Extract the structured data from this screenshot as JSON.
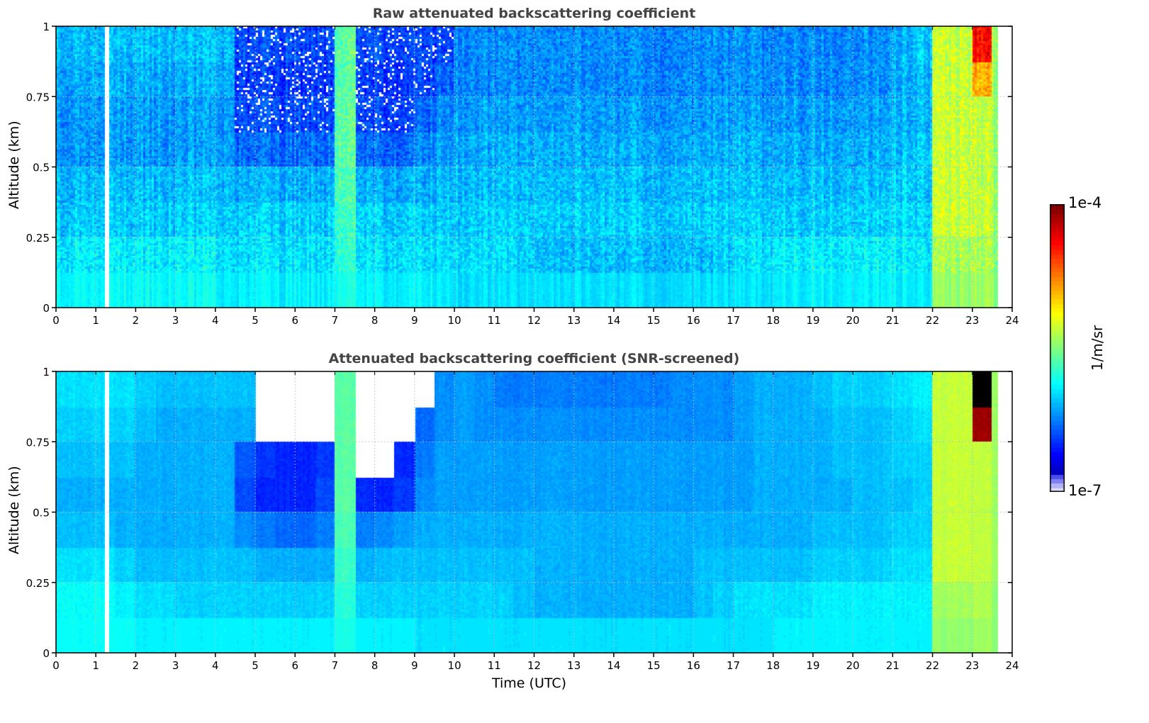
{
  "chart_data": [
    {
      "type": "heatmap",
      "title": "Raw attenuated backscattering coefficient",
      "xlabel": "",
      "ylabel": "Altitude (km)",
      "xlim": [
        0,
        24
      ],
      "ylim": [
        0,
        1
      ],
      "xticks": [
        "0",
        "1",
        "2",
        "3",
        "4",
        "5",
        "6",
        "7",
        "8",
        "9",
        "10",
        "11",
        "12",
        "13",
        "14",
        "15",
        "16",
        "17",
        "18",
        "19",
        "20",
        "21",
        "22",
        "23",
        "24"
      ],
      "yticks": [
        "0",
        "0.25",
        "0.5",
        "0.75",
        "1"
      ],
      "grid": true,
      "time_bin_hours": 0.5,
      "altitude_bins_km_top_to_bottom": [
        [
          0.875,
          1
        ],
        [
          0.75,
          0.875
        ],
        [
          0.625,
          0.75
        ],
        [
          0.5,
          0.625
        ],
        [
          0.375,
          0.5
        ],
        [
          0.25,
          0.375
        ],
        [
          0.125,
          0.25
        ],
        [
          0,
          0.125
        ]
      ],
      "noise_log10": 0.28,
      "missing_profile_times": [
        1.27
      ],
      "no_data_after": 23.65,
      "log10_values": [
        [
          -6.05,
          -6.05,
          -6.05,
          -6.05,
          -6.05,
          -6.05,
          -6.05,
          -6.05,
          -6.05,
          -6.4,
          -6.4,
          -6.4,
          -6.4,
          -6.4,
          -5.6,
          -6.4,
          -6.4,
          -6.4,
          -6.4,
          -6.4,
          -6.2,
          -6.2,
          -6.2,
          -6.2,
          -6.2,
          -6.2,
          -6.2,
          -6.2,
          -6.2,
          -6.2,
          -6.2,
          -6.2,
          -6.2,
          -6.2,
          -6.2,
          -6.2,
          -6.2,
          -6.2,
          -6.2,
          -6.2,
          -6.2,
          -6.2,
          -6.1,
          -6.0,
          -5.3,
          -5.3,
          -4.4,
          -5.4
        ],
        [
          -6.1,
          -6.1,
          -6.1,
          -6.1,
          -6.1,
          -6.1,
          -6.1,
          -6.1,
          -6.1,
          -6.45,
          -6.45,
          -6.45,
          -6.45,
          -6.45,
          -5.6,
          -6.45,
          -6.45,
          -6.45,
          -6.4,
          -6.3,
          -6.2,
          -6.2,
          -6.2,
          -6.2,
          -6.2,
          -6.2,
          -6.2,
          -6.2,
          -6.2,
          -6.2,
          -6.2,
          -6.2,
          -6.2,
          -6.2,
          -6.2,
          -6.2,
          -6.2,
          -6.2,
          -6.2,
          -6.2,
          -6.2,
          -6.2,
          -6.1,
          -6.05,
          -5.3,
          -5.3,
          -4.9,
          -5.4
        ],
        [
          -6.15,
          -6.15,
          -6.15,
          -6.15,
          -6.15,
          -6.15,
          -6.15,
          -6.15,
          -6.15,
          -6.4,
          -6.4,
          -6.4,
          -6.4,
          -6.4,
          -5.6,
          -6.4,
          -6.4,
          -6.4,
          -6.3,
          -6.2,
          -6.15,
          -6.15,
          -6.15,
          -6.15,
          -6.15,
          -6.15,
          -6.15,
          -6.15,
          -6.15,
          -6.15,
          -6.15,
          -6.15,
          -6.15,
          -6.15,
          -6.15,
          -6.15,
          -6.15,
          -6.15,
          -6.15,
          -6.15,
          -6.15,
          -6.15,
          -6.1,
          -6.05,
          -5.3,
          -5.3,
          -5.3,
          -5.4
        ],
        [
          -6.15,
          -6.15,
          -6.15,
          -6.15,
          -6.15,
          -6.15,
          -6.15,
          -6.15,
          -6.15,
          -6.3,
          -6.3,
          -6.3,
          -6.3,
          -6.3,
          -5.6,
          -6.3,
          -6.3,
          -6.3,
          -6.2,
          -6.15,
          -6.1,
          -6.1,
          -6.1,
          -6.1,
          -6.1,
          -6.1,
          -6.1,
          -6.1,
          -6.1,
          -6.1,
          -6.1,
          -6.1,
          -6.1,
          -6.1,
          -6.1,
          -6.1,
          -6.1,
          -6.1,
          -6.1,
          -6.1,
          -6.1,
          -6.1,
          -6.05,
          -6.0,
          -5.3,
          -5.3,
          -5.3,
          -5.4
        ],
        [
          -6.05,
          -6.05,
          -6.05,
          -6.05,
          -6.05,
          -6.05,
          -6.05,
          -6.05,
          -6.05,
          -6.1,
          -6.1,
          -6.1,
          -6.1,
          -6.1,
          -5.65,
          -6.1,
          -6.1,
          -6.1,
          -6.1,
          -6.05,
          -6.05,
          -6.05,
          -6.05,
          -6.05,
          -6.05,
          -6.05,
          -6.05,
          -6.05,
          -6.05,
          -6.05,
          -6.05,
          -6.05,
          -6.05,
          -6.05,
          -6.05,
          -6.05,
          -6.05,
          -6.05,
          -6.05,
          -6.05,
          -6.05,
          -6.05,
          -6.0,
          -6.0,
          -5.3,
          -5.3,
          -5.3,
          -5.4
        ],
        [
          -6.0,
          -6.0,
          -6.0,
          -6.0,
          -6.0,
          -6.0,
          -6.0,
          -6.0,
          -6.0,
          -6.0,
          -6.0,
          -6.0,
          -6.0,
          -6.0,
          -5.7,
          -6.0,
          -6.0,
          -6.0,
          -6.0,
          -6.0,
          -6.0,
          -6.0,
          -6.0,
          -6.0,
          -6.0,
          -6.0,
          -6.0,
          -6.0,
          -6.0,
          -6.0,
          -6.0,
          -6.0,
          -6.0,
          -6.0,
          -6.0,
          -6.0,
          -6.0,
          -6.0,
          -6.0,
          -6.0,
          -6.0,
          -6.0,
          -5.95,
          -5.95,
          -5.3,
          -5.3,
          -5.3,
          -5.4
        ],
        [
          -5.9,
          -5.9,
          -5.9,
          -5.9,
          -5.9,
          -5.9,
          -5.9,
          -5.9,
          -5.95,
          -5.95,
          -5.95,
          -5.95,
          -5.95,
          -5.95,
          -5.75,
          -5.95,
          -5.95,
          -5.95,
          -5.95,
          -5.95,
          -5.95,
          -5.95,
          -5.95,
          -6.0,
          -6.05,
          -6.05,
          -6.05,
          -6.05,
          -6.05,
          -6.05,
          -6.05,
          -6.05,
          -6.05,
          -6.0,
          -5.95,
          -5.95,
          -5.9,
          -5.9,
          -5.9,
          -5.9,
          -5.9,
          -5.9,
          -5.9,
          -5.9,
          -5.4,
          -5.4,
          -5.35,
          -5.45
        ],
        [
          -5.85,
          -5.85,
          -5.85,
          -5.85,
          -5.85,
          -5.85,
          -5.85,
          -5.85,
          -5.9,
          -5.9,
          -5.9,
          -5.9,
          -5.9,
          -5.9,
          -5.8,
          -5.9,
          -5.9,
          -5.9,
          -5.9,
          -5.9,
          -5.95,
          -5.95,
          -5.95,
          -5.95,
          -5.95,
          -5.95,
          -5.95,
          -5.95,
          -5.95,
          -5.95,
          -5.95,
          -5.95,
          -5.95,
          -5.95,
          -5.95,
          -5.95,
          -5.9,
          -5.9,
          -5.9,
          -5.9,
          -5.9,
          -5.9,
          -5.9,
          -5.9,
          -5.45,
          -5.45,
          -5.4,
          -5.45
        ]
      ]
    },
    {
      "type": "heatmap",
      "title": "Attenuated backscattering coefficient (SNR-screened)",
      "xlabel": "Time (UTC)",
      "ylabel": "Altitude (km)",
      "xlim": [
        0,
        24
      ],
      "ylim": [
        0,
        1
      ],
      "xticks": [
        "0",
        "1",
        "2",
        "3",
        "4",
        "5",
        "6",
        "7",
        "8",
        "9",
        "10",
        "11",
        "12",
        "13",
        "14",
        "15",
        "16",
        "17",
        "18",
        "19",
        "20",
        "21",
        "22",
        "23",
        "24"
      ],
      "yticks": [
        "0",
        "0.25",
        "0.5",
        "0.75",
        "1"
      ],
      "grid": true,
      "time_bin_hours": 0.5,
      "altitude_bins_km_top_to_bottom": [
        [
          0.875,
          1
        ],
        [
          0.75,
          0.875
        ],
        [
          0.625,
          0.75
        ],
        [
          0.5,
          0.625
        ],
        [
          0.375,
          0.5
        ],
        [
          0.25,
          0.375
        ],
        [
          0.125,
          0.25
        ],
        [
          0,
          0.125
        ]
      ],
      "noise_log10": 0.08,
      "missing_profile_times": [
        1.27
      ],
      "no_data_after": 23.65,
      "log10_values": [
        [
          -5.95,
          -5.95,
          -5.95,
          -5.95,
          -6.0,
          -6.05,
          -6.05,
          -6.05,
          -6.05,
          -6.05,
          null,
          null,
          null,
          null,
          -5.6,
          null,
          null,
          null,
          null,
          -6.2,
          -6.15,
          -6.2,
          -6.25,
          -6.25,
          -6.25,
          -6.25,
          -6.25,
          -6.25,
          -6.25,
          -6.25,
          -6.25,
          -6.2,
          -6.2,
          -6.2,
          -6.15,
          -6.1,
          -6.1,
          -6.1,
          -6.05,
          -6.0,
          -6.0,
          -6.0,
          -5.95,
          -5.9,
          -5.3,
          -5.3,
          -3.8,
          -5.4
        ],
        [
          -6.0,
          -6.0,
          -6.0,
          -6.0,
          -6.05,
          -6.1,
          -6.1,
          -6.1,
          -6.1,
          -6.1,
          null,
          null,
          null,
          null,
          -5.6,
          null,
          null,
          null,
          -6.3,
          -6.2,
          -6.15,
          -6.2,
          -6.2,
          -6.2,
          -6.2,
          -6.2,
          -6.2,
          -6.2,
          -6.2,
          -6.2,
          -6.2,
          -6.2,
          -6.2,
          -6.2,
          -6.15,
          -6.1,
          -6.1,
          -6.1,
          -6.1,
          -6.05,
          -6.05,
          -6.05,
          -6.0,
          -5.95,
          -5.3,
          -5.3,
          -4.1,
          -5.4
        ],
        [
          -6.05,
          -6.05,
          -6.05,
          -6.05,
          -6.1,
          -6.1,
          -6.1,
          -6.1,
          -6.1,
          -6.35,
          -6.45,
          -6.5,
          -6.5,
          -6.45,
          -5.6,
          null,
          null,
          -6.5,
          -6.25,
          -6.15,
          -6.15,
          -6.15,
          -6.15,
          -6.15,
          -6.15,
          -6.15,
          -6.15,
          -6.15,
          -6.15,
          -6.15,
          -6.15,
          -6.15,
          -6.15,
          -6.15,
          -6.15,
          -6.1,
          -6.1,
          -6.1,
          -6.1,
          -6.05,
          -6.05,
          -6.05,
          -6.0,
          -6.0,
          -5.3,
          -5.3,
          -5.3,
          -5.4
        ],
        [
          -6.1,
          -6.1,
          -6.1,
          -6.1,
          -6.1,
          -6.1,
          -6.1,
          -6.1,
          -6.1,
          -6.4,
          -6.5,
          -6.5,
          -6.5,
          -6.4,
          -5.6,
          -6.5,
          -6.5,
          -6.45,
          -6.2,
          -6.15,
          -6.15,
          -6.15,
          -6.15,
          -6.15,
          -6.15,
          -6.15,
          -6.15,
          -6.15,
          -6.15,
          -6.15,
          -6.15,
          -6.15,
          -6.15,
          -6.15,
          -6.15,
          -6.1,
          -6.1,
          -6.1,
          -6.1,
          -6.1,
          -6.05,
          -6.05,
          -6.05,
          -6.0,
          -5.3,
          -5.3,
          -5.3,
          -5.4
        ],
        [
          -6.05,
          -6.05,
          -6.05,
          -6.1,
          -6.1,
          -6.1,
          -6.1,
          -6.1,
          -6.1,
          -6.2,
          -6.25,
          -6.3,
          -6.3,
          -6.25,
          -5.65,
          -6.25,
          -6.2,
          -6.15,
          -6.1,
          -6.1,
          -6.1,
          -6.1,
          -6.1,
          -6.1,
          -6.1,
          -6.1,
          -6.1,
          -6.1,
          -6.1,
          -6.1,
          -6.1,
          -6.1,
          -6.1,
          -6.1,
          -6.1,
          -6.1,
          -6.1,
          -6.1,
          -6.05,
          -6.05,
          -6.05,
          -6.05,
          -6.0,
          -6.0,
          -5.3,
          -5.3,
          -5.3,
          -5.4
        ],
        [
          -5.95,
          -5.95,
          -5.95,
          -6.0,
          -6.05,
          -6.05,
          -6.05,
          -6.05,
          -6.05,
          -6.05,
          -6.1,
          -6.1,
          -6.1,
          -6.1,
          -5.7,
          -6.1,
          -6.05,
          -6.05,
          -6.05,
          -6.05,
          -6.05,
          -6.05,
          -6.05,
          -6.05,
          -6.1,
          -6.1,
          -6.1,
          -6.1,
          -6.1,
          -6.1,
          -6.1,
          -6.1,
          -6.05,
          -6.05,
          -6.05,
          -6.05,
          -6.05,
          -6.05,
          -6.0,
          -6.0,
          -6.0,
          -6.0,
          -5.95,
          -5.95,
          -5.3,
          -5.3,
          -5.3,
          -5.4
        ],
        [
          -5.85,
          -5.85,
          -5.85,
          -5.9,
          -5.95,
          -5.95,
          -6.0,
          -6.0,
          -6.0,
          -6.0,
          -6.0,
          -6.0,
          -6.0,
          -6.0,
          -5.75,
          -6.0,
          -6.0,
          -6.0,
          -6.0,
          -6.0,
          -6.0,
          -6.0,
          -6.0,
          -6.05,
          -6.1,
          -6.1,
          -6.1,
          -6.1,
          -6.1,
          -6.1,
          -6.1,
          -6.1,
          -6.05,
          -6.0,
          -5.95,
          -5.95,
          -5.95,
          -5.95,
          -5.9,
          -5.9,
          -5.9,
          -5.9,
          -5.9,
          -5.9,
          -5.4,
          -5.4,
          -5.35,
          -5.45
        ],
        [
          -5.85,
          -5.85,
          -5.85,
          -5.85,
          -5.9,
          -5.9,
          -5.9,
          -5.9,
          -5.9,
          -5.9,
          -5.9,
          -5.9,
          -5.9,
          -5.9,
          -5.8,
          -5.9,
          -5.9,
          -5.9,
          -5.95,
          -5.95,
          -5.95,
          -5.95,
          -5.95,
          -5.95,
          -5.95,
          -5.95,
          -5.95,
          -5.95,
          -5.95,
          -5.95,
          -5.95,
          -5.95,
          -5.95,
          -5.95,
          -5.95,
          -5.95,
          -5.9,
          -5.9,
          -5.9,
          -5.9,
          -5.9,
          -5.9,
          -5.9,
          -5.9,
          -5.45,
          -5.45,
          -5.4,
          -5.45
        ]
      ]
    }
  ],
  "colorbar": {
    "label": "1/m/sr",
    "max_label": "1e-4",
    "min_label": "1e-7",
    "log10_range": [
      -7,
      -4
    ],
    "levels": 64
  }
}
